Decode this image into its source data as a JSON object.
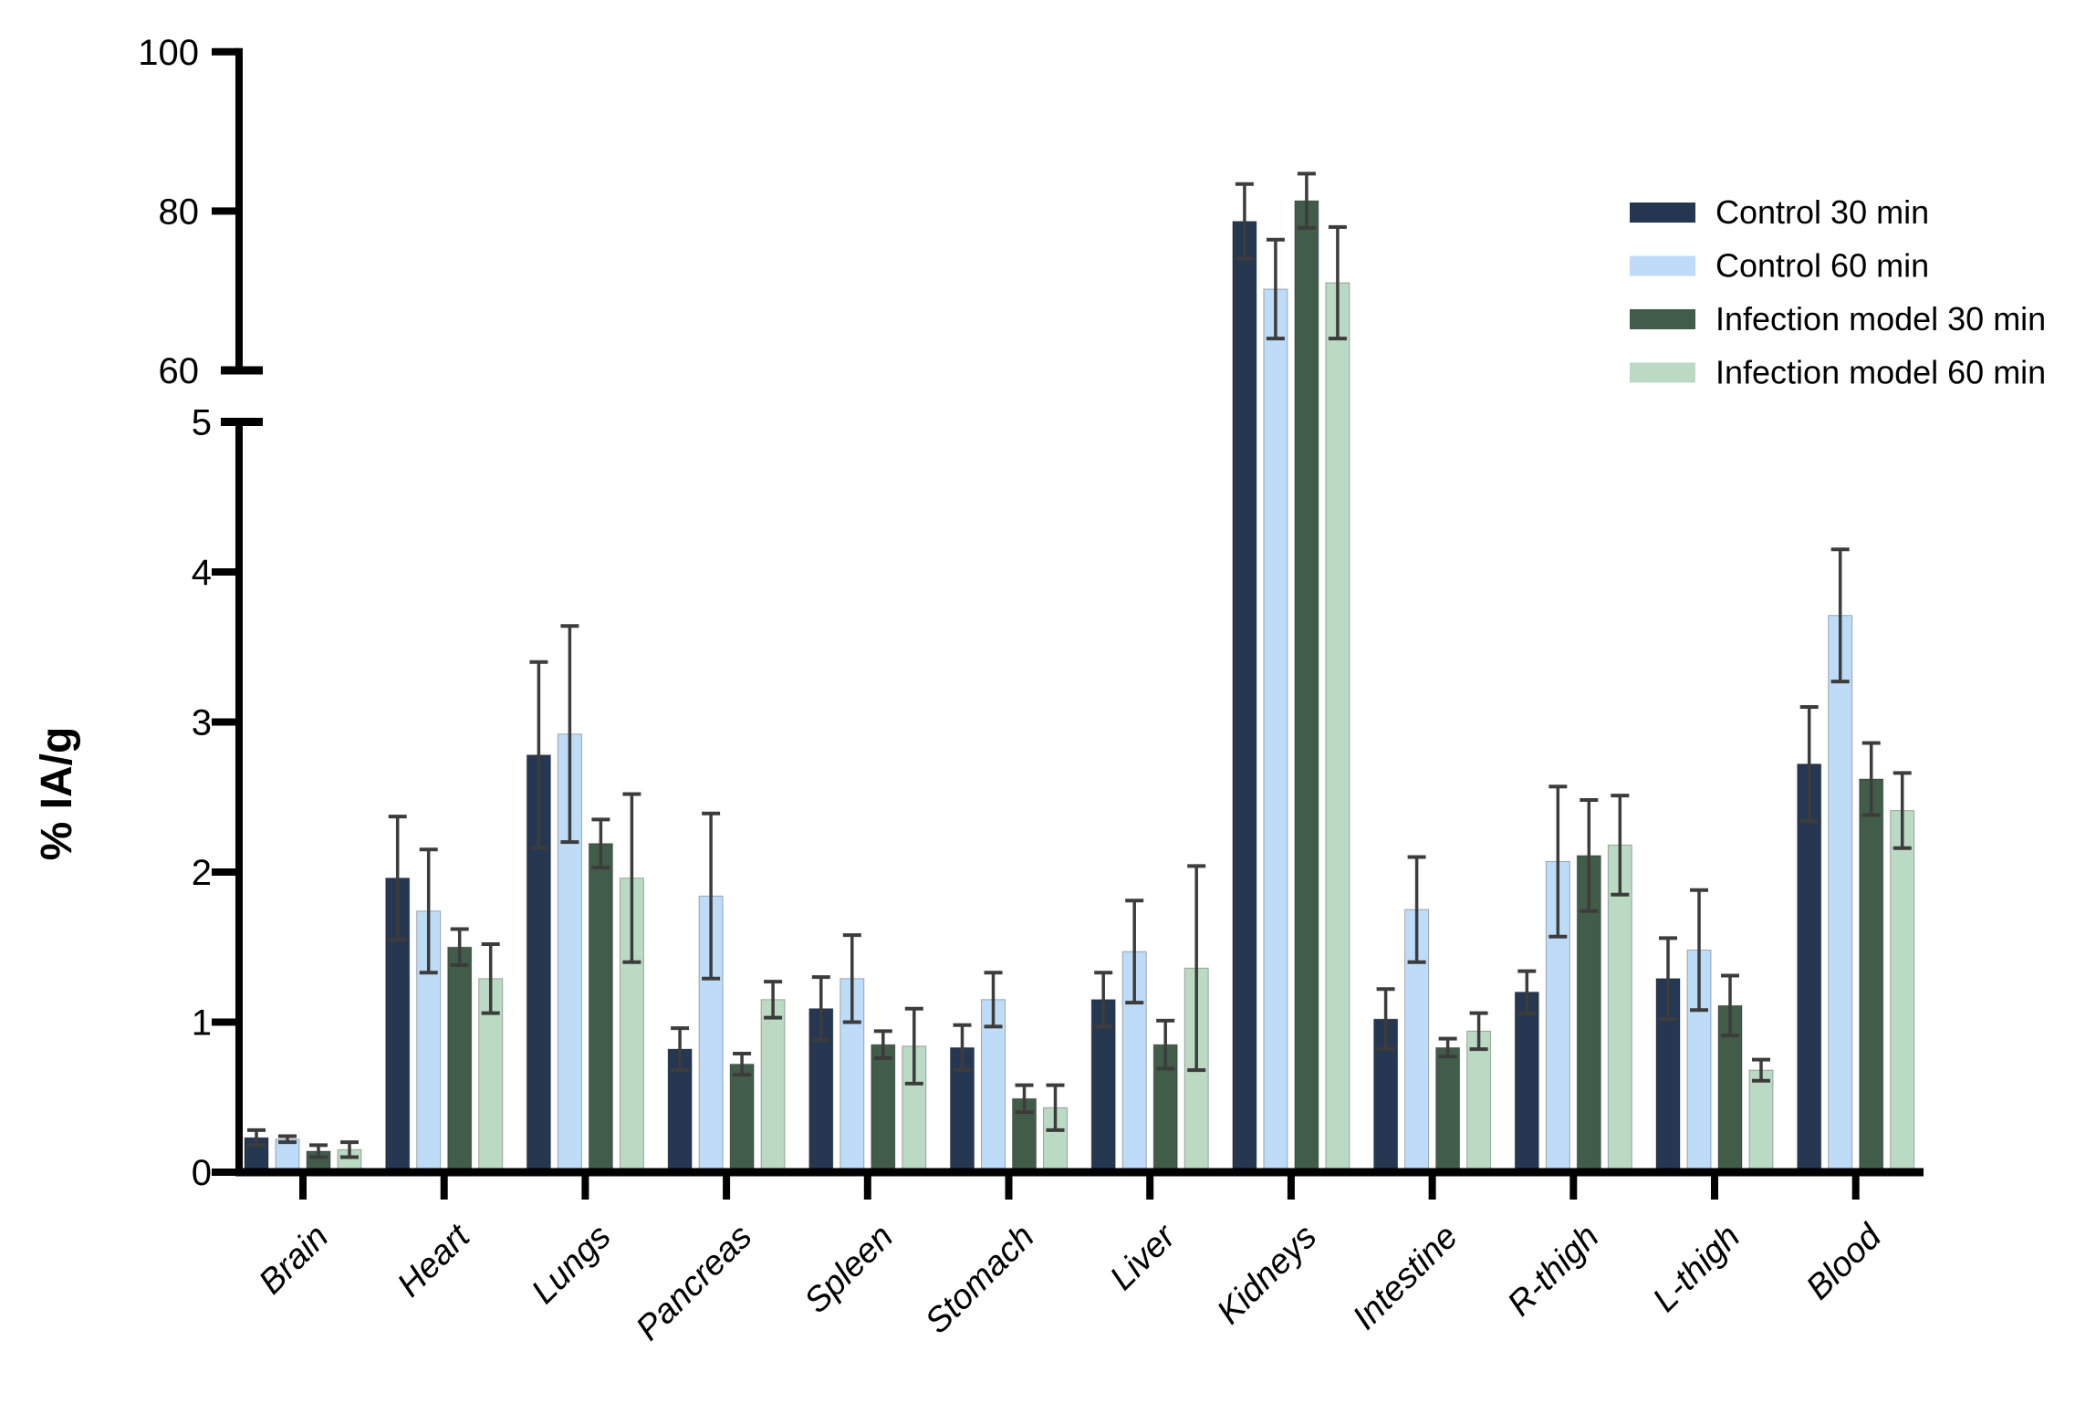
{
  "chart_data": {
    "type": "bar",
    "title": "",
    "ylabel": "% IA/g",
    "grid": false,
    "background_color": "#ffffff",
    "error_bar_color": "#3c3c3c",
    "axis_color": "#000000",
    "axis_break": true,
    "lower_axis": {
      "min": 0,
      "max": 5,
      "ticks": [
        0,
        1,
        2,
        3,
        4,
        5
      ]
    },
    "upper_axis": {
      "min": 60,
      "max": 100,
      "ticks": [
        60,
        80,
        100
      ]
    },
    "legend_position": "top-right",
    "categories": [
      "Brain",
      "Heart",
      "Lungs",
      "Pancreas",
      "Spleen",
      "Stomach",
      "Liver",
      "Kidneys",
      "Intestine",
      "R-thigh",
      "L-thigh",
      "Blood"
    ],
    "series": [
      {
        "name": "Control 30 min",
        "color": "#263751",
        "values": [
          0.23,
          1.96,
          2.78,
          0.82,
          1.09,
          0.83,
          1.15,
          78.7,
          1.02,
          1.2,
          1.29,
          2.72
        ],
        "errors": [
          0.05,
          0.41,
          0.62,
          0.14,
          0.21,
          0.15,
          0.18,
          4.7,
          0.2,
          0.14,
          0.27,
          0.38
        ]
      },
      {
        "name": "Control 60 min",
        "color": "#bedcf8",
        "values": [
          0.22,
          1.74,
          2.92,
          1.84,
          1.29,
          1.15,
          1.47,
          70.2,
          1.75,
          2.07,
          1.48,
          3.71
        ],
        "errors": [
          0.02,
          0.41,
          0.72,
          0.55,
          0.29,
          0.18,
          0.34,
          6.2,
          0.35,
          0.5,
          0.4,
          0.44
        ]
      },
      {
        "name": "Infection model 30 min",
        "color": "#415c49",
        "values": [
          0.14,
          1.5,
          2.19,
          0.72,
          0.85,
          0.49,
          0.85,
          81.3,
          0.83,
          2.11,
          1.11,
          2.62
        ],
        "errors": [
          0.04,
          0.12,
          0.16,
          0.07,
          0.09,
          0.09,
          0.16,
          3.4,
          0.06,
          0.37,
          0.2,
          0.24
        ]
      },
      {
        "name": "Infection model 60 min",
        "color": "#badac4",
        "values": [
          0.15,
          1.29,
          1.96,
          1.15,
          0.84,
          0.43,
          1.36,
          71.0,
          0.94,
          2.18,
          0.68,
          2.41
        ],
        "errors": [
          0.05,
          0.23,
          0.56,
          0.12,
          0.25,
          0.15,
          0.68,
          7.0,
          0.12,
          0.33,
          0.07,
          0.25
        ]
      }
    ]
  }
}
